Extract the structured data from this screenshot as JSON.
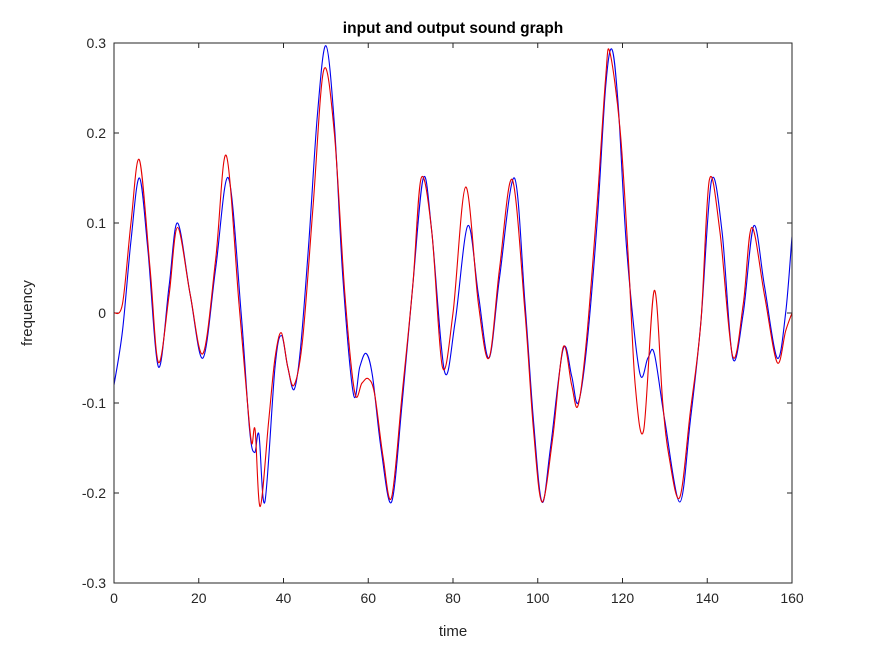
{
  "figure": {
    "background": "#ffffff"
  },
  "colors": {
    "axis": "#262626",
    "tick_label": "#262626",
    "title": "#000000",
    "input_line": "#0000ee",
    "output_line": "#e60000"
  },
  "chart_data": {
    "type": "line",
    "title": "input and output sound graph",
    "xlabel": "time",
    "ylabel": "frequency",
    "xlim": [
      0,
      160
    ],
    "ylim": [
      -0.3,
      0.3
    ],
    "xticks": [
      "0",
      "20",
      "40",
      "60",
      "80",
      "100",
      "120",
      "140",
      "160"
    ],
    "yticks": [
      "-0.3",
      "-0.2",
      "-0.1",
      "0",
      "0.1",
      "0.2",
      "0.3"
    ],
    "grid": false,
    "legend": "none",
    "series": [
      {
        "name": "input",
        "color": "#0000ee",
        "x": [
          0,
          2,
          4,
          6,
          8,
          10.5,
          13,
          15,
          18,
          21,
          24,
          27,
          30,
          32,
          33.2,
          34.2,
          35.6,
          38,
          39.5,
          41,
          42.5,
          44,
          46,
          48,
          50,
          52,
          54,
          56.5,
          58,
          59.5,
          61,
          63,
          65.5,
          68,
          70.5,
          73,
          75,
          78,
          80.5,
          83.5,
          86,
          88.5,
          91,
          94.5,
          97,
          99,
          101,
          103,
          106,
          108,
          109.5,
          111.5,
          114,
          116,
          117.5,
          119,
          121,
          124,
          126,
          127.5,
          130,
          133.5,
          136,
          138.5,
          141,
          143.5,
          146,
          148.5,
          151,
          153.5,
          156.5,
          158.5,
          160
        ],
        "y": [
          -0.08,
          -0.02,
          0.08,
          0.15,
          0.07,
          -0.06,
          0.03,
          0.1,
          0.02,
          -0.05,
          0.05,
          0.15,
          0.0,
          -0.13,
          -0.155,
          -0.135,
          -0.21,
          -0.06,
          -0.025,
          -0.06,
          -0.085,
          -0.04,
          0.08,
          0.22,
          0.297,
          0.21,
          0.04,
          -0.09,
          -0.06,
          -0.045,
          -0.07,
          -0.15,
          -0.21,
          -0.1,
          0.03,
          0.15,
          0.09,
          -0.065,
          -0.01,
          0.097,
          0.02,
          -0.05,
          0.04,
          0.15,
          0.01,
          -0.12,
          -0.21,
          -0.15,
          -0.04,
          -0.07,
          -0.1,
          -0.04,
          0.1,
          0.25,
          0.293,
          0.23,
          0.07,
          -0.065,
          -0.05,
          -0.045,
          -0.12,
          -0.21,
          -0.12,
          -0.01,
          0.147,
          0.09,
          -0.05,
          0.0,
          0.097,
          0.03,
          -0.05,
          0.0,
          0.085
        ]
      },
      {
        "name": "output",
        "color": "#e60000",
        "x": [
          0,
          2,
          4,
          6,
          8.5,
          10.5,
          13,
          15,
          18,
          21,
          24,
          26.5,
          29.5,
          31.5,
          32.5,
          33.3,
          34.5,
          36.5,
          38,
          39.5,
          41,
          42.5,
          44.5,
          47,
          49.5,
          52,
          54.5,
          56.8,
          58.5,
          60,
          61.5,
          63.5,
          65.5,
          68,
          70.5,
          72.5,
          75,
          77.5,
          80,
          83,
          86,
          88.5,
          91,
          94,
          97,
          99,
          101,
          103.5,
          106,
          108,
          109.5,
          111.5,
          114,
          116,
          117,
          119.5,
          121.5,
          123,
          125,
          127.5,
          129.5,
          131,
          133.5,
          136,
          138.5,
          140.5,
          143,
          146,
          148.5,
          150.5,
          153.5,
          156.5,
          158.5,
          160
        ],
        "y": [
          0.0,
          0.01,
          0.1,
          0.17,
          0.05,
          -0.055,
          0.02,
          0.095,
          0.02,
          -0.045,
          0.06,
          0.175,
          0.01,
          -0.1,
          -0.145,
          -0.13,
          -0.215,
          -0.12,
          -0.05,
          -0.022,
          -0.06,
          -0.08,
          -0.03,
          0.12,
          0.27,
          0.2,
          0.02,
          -0.088,
          -0.078,
          -0.073,
          -0.09,
          -0.16,
          -0.205,
          -0.09,
          0.03,
          0.15,
          0.09,
          -0.06,
          0.0,
          0.14,
          0.01,
          -0.05,
          0.05,
          0.148,
          0.0,
          -0.13,
          -0.21,
          -0.14,
          -0.038,
          -0.08,
          -0.103,
          -0.03,
          0.12,
          0.26,
          0.29,
          0.2,
          0.05,
          -0.08,
          -0.13,
          0.025,
          -0.1,
          -0.16,
          -0.205,
          -0.11,
          -0.01,
          0.148,
          0.09,
          -0.048,
          0.01,
          0.095,
          0.02,
          -0.055,
          -0.02,
          0.0
        ]
      }
    ]
  }
}
